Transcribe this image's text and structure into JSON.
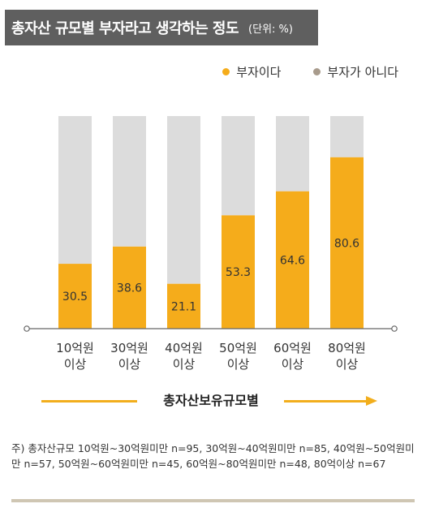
{
  "title": {
    "main": "총자산 규모별 부자라고 생각하는 정도",
    "unit": "(단위: %)"
  },
  "legend": [
    {
      "label": "부자이다",
      "color": "#f5ac1b"
    },
    {
      "label": "부자가 아니다",
      "color": "#a89b8c"
    }
  ],
  "chart_data": {
    "type": "bar",
    "stacked": true,
    "categories": [
      "10억원\n이상",
      "30억원\n이상",
      "40억원\n이상",
      "50억원\n이상",
      "60억원\n이상",
      "80억원\n이상"
    ],
    "series": [
      {
        "name": "부자이다",
        "values": [
          30.5,
          38.6,
          21.1,
          53.3,
          64.6,
          80.6
        ],
        "color": "#f5ac1b"
      },
      {
        "name": "부자가 아니다",
        "values": [
          69.5,
          61.4,
          78.9,
          46.7,
          35.4,
          19.4
        ],
        "color": "#dcdcdc"
      }
    ],
    "ylim": [
      0,
      100
    ],
    "grid": false,
    "legend_position": "top-right",
    "data_labels": [
      "30.5",
      "38.6",
      "21.1",
      "53.3",
      "64.6",
      "80.6"
    ]
  },
  "axis_caption": "총자산보유규모별",
  "note": "주) 총자산규모 10억원~30억원미만 n=95, 30억원~40억원미만 n=85, 40억원~50억원미만 n=57, 50억원~60억원미만 n=45, 60억원~80억원미만 n=48, 80억이상 n=67"
}
